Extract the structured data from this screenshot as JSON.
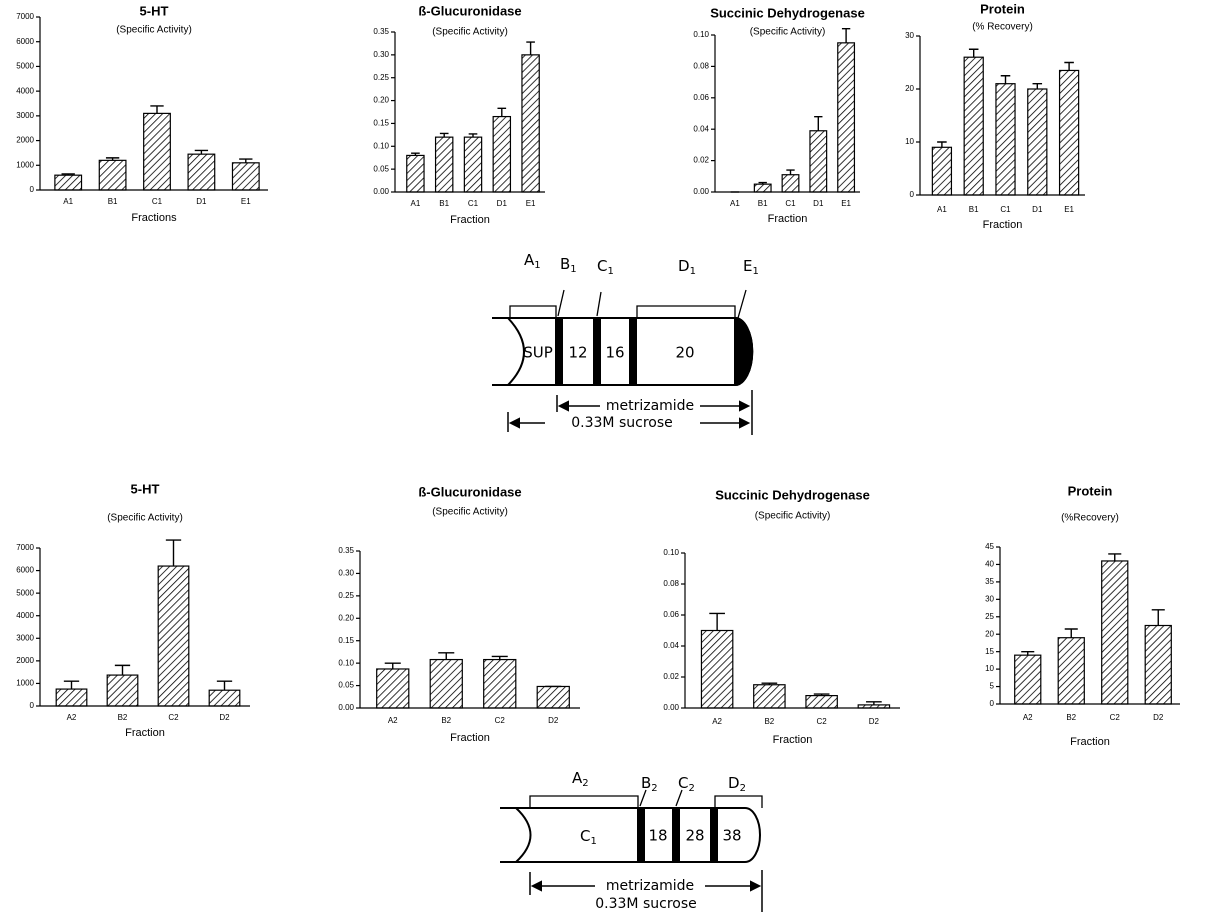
{
  "chart_data": [
    {
      "type": "bar",
      "title": "5-HT",
      "subtitle": "(Specific Activity)",
      "xlabel": "Fractions",
      "categories": [
        "A1",
        "B1",
        "C1",
        "D1",
        "E1"
      ],
      "values": [
        600,
        1200,
        3100,
        1450,
        1100
      ],
      "errors": [
        50,
        100,
        300,
        150,
        150
      ],
      "color": "#000000",
      "ylim": [
        0,
        7000
      ],
      "yticks": [
        0,
        1000,
        2000,
        3000,
        4000,
        5000,
        6000,
        7000
      ]
    },
    {
      "type": "bar",
      "title": "ß-Glucuronidase",
      "subtitle": "(Specific Activity)",
      "xlabel": "Fraction",
      "categories": [
        "A1",
        "B1",
        "C1",
        "D1",
        "E1"
      ],
      "values": [
        0.08,
        0.12,
        0.12,
        0.165,
        0.3
      ],
      "errors": [
        0.005,
        0.008,
        0.007,
        0.018,
        0.028
      ],
      "color": "#000000",
      "ylim": [
        0,
        0.35
      ],
      "yticks": [
        {
          "value": 0,
          "label": "0.00"
        },
        0.05,
        {
          "value": 0.1,
          "label": "0.10"
        },
        0.15,
        {
          "value": 0.2,
          "label": "0.20"
        },
        0.25,
        {
          "value": 0.3,
          "label": "0.30"
        },
        0.35
      ]
    },
    {
      "type": "bar",
      "title": "Succinic Dehydrogenase",
      "subtitle": "(Specific Activity)",
      "xlabel": "Fraction",
      "categories": [
        "A1",
        "B1",
        "C1",
        "D1",
        "E1"
      ],
      "values": [
        0,
        0.005,
        0.011,
        0.039,
        0.095
      ],
      "errors": [
        0,
        0.001,
        0.003,
        0.009,
        0.009
      ],
      "color": "#000000",
      "ylim": [
        0,
        0.1
      ],
      "yticks": [
        {
          "value": 0,
          "label": "0.00"
        },
        0.02,
        0.04,
        0.06,
        0.08,
        {
          "value": 0.1,
          "label": "0.10"
        }
      ]
    },
    {
      "type": "bar",
      "title": "Protein",
      "subtitle": "(% Recovery)",
      "xlabel": "Fraction",
      "categories": [
        "A1",
        "B1",
        "C1",
        "D1",
        "E1"
      ],
      "values": [
        9,
        26,
        21,
        20,
        23.5
      ],
      "errors": [
        1,
        1.5,
        1.5,
        1,
        1.5
      ],
      "color": "#000000",
      "ylim": [
        0,
        30
      ],
      "yticks": [
        0,
        10,
        20,
        30
      ]
    },
    {
      "type": "bar",
      "title": "5-HT",
      "subtitle": "(Specific Activity)",
      "xlabel": "Fraction",
      "categories": [
        "A2",
        "B2",
        "C2",
        "D2"
      ],
      "values": [
        750,
        1370,
        6200,
        700
      ],
      "errors": [
        350,
        430,
        1150,
        400
      ],
      "color": "#000000",
      "ylim": [
        0,
        7000
      ],
      "yticks": [
        0,
        1000,
        2000,
        3000,
        4000,
        5000,
        6000,
        7000
      ]
    },
    {
      "type": "bar",
      "title": "ß-Glucuronidase",
      "subtitle": "(Specific Activity)",
      "xlabel": "Fraction",
      "categories": [
        "A2",
        "B2",
        "C2",
        "D2"
      ],
      "values": [
        0.087,
        0.108,
        0.108,
        0.048
      ],
      "errors": [
        0.013,
        0.015,
        0.007,
        0
      ],
      "color": "#000000",
      "ylim": [
        0,
        0.35
      ],
      "yticks": [
        {
          "value": 0,
          "label": "0.00"
        },
        0.05,
        {
          "value": 0.1,
          "label": "0.10"
        },
        0.15,
        {
          "value": 0.2,
          "label": "0.20"
        },
        0.25,
        {
          "value": 0.3,
          "label": "0.30"
        },
        0.35
      ]
    },
    {
      "type": "bar",
      "title": "Succinic Dehydrogenase",
      "subtitle": "(Specific Activity)",
      "xlabel": "Fraction",
      "categories": [
        "A2",
        "B2",
        "C2",
        "D2"
      ],
      "values": [
        0.05,
        0.015,
        0.008,
        0.002
      ],
      "errors": [
        0.011,
        0.001,
        0.001,
        0.002
      ],
      "color": "#000000",
      "ylim": [
        0,
        0.1
      ],
      "yticks": [
        {
          "value": 0,
          "label": "0.00"
        },
        0.02,
        0.04,
        0.06,
        0.08,
        {
          "value": 0.1,
          "label": "0.10"
        }
      ]
    },
    {
      "type": "bar",
      "title": "Protein",
      "subtitle": "(%Recovery)",
      "xlabel": "Fraction",
      "categories": [
        "A2",
        "B2",
        "C2",
        "D2"
      ],
      "values": [
        14,
        19,
        41,
        22.5
      ],
      "errors": [
        1,
        2.5,
        2,
        4.5
      ],
      "color": "#000000",
      "ylim": [
        0,
        45
      ],
      "yticks": [
        0,
        5,
        10,
        15,
        20,
        25,
        30,
        35,
        40,
        45
      ]
    }
  ],
  "diagrams": [
    {
      "labels": [
        {
          "letter": "A",
          "sub": "1"
        },
        {
          "letter": "B",
          "sub": "1"
        },
        {
          "letter": "C",
          "sub": "1"
        },
        {
          "letter": "D",
          "sub": "1"
        },
        {
          "letter": "E",
          "sub": "1"
        }
      ],
      "segments": [
        "SUP",
        "12",
        "16",
        "20"
      ],
      "metrizamide": "metrizamide",
      "sucrose": "0.33M sucrose"
    },
    {
      "labels": [
        {
          "letter": "A",
          "sub": "2"
        },
        {
          "letter": "B",
          "sub": "2"
        },
        {
          "letter": "C",
          "sub": "2"
        },
        {
          "letter": "D",
          "sub": "2"
        }
      ],
      "segments": [
        {
          "letter": "C",
          "sub": "1"
        },
        "18",
        "28",
        "38"
      ],
      "metrizamide": "metrizamide",
      "sucrose": "0.33M sucrose"
    }
  ]
}
